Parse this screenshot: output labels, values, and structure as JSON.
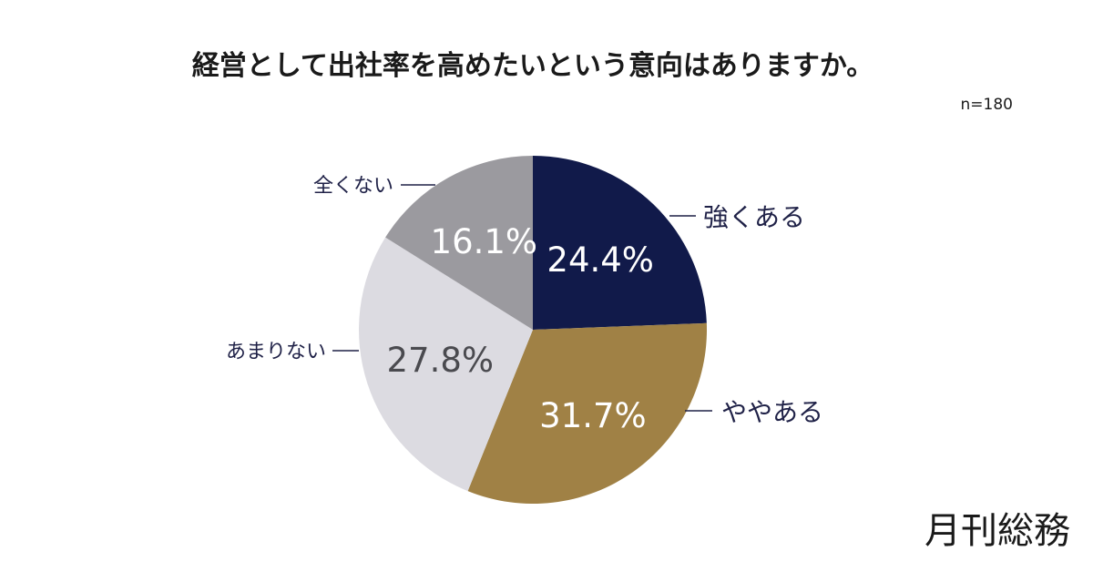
{
  "chart_data": {
    "type": "pie",
    "title": "経営として出社率を高めたいという意向はありますか。",
    "sample_size": "n=180",
    "categories": [
      "強くある",
      "ややある",
      "あまりない",
      "全くない"
    ],
    "values": [
      24.4,
      31.7,
      27.8,
      16.1
    ],
    "value_labels": [
      "24.4%",
      "31.7%",
      "27.8%",
      "16.1%"
    ],
    "colors": [
      "#111a4a",
      "#a08145",
      "#dcdbe1",
      "#9b9a9f"
    ],
    "label_colors": [
      "#ffffff",
      "#ffffff",
      "#4a4a4f",
      "#ffffff"
    ],
    "start_angle_deg": 0,
    "direction": "clockwise",
    "legend": "none"
  },
  "brand": {
    "name": "月刊総務"
  }
}
